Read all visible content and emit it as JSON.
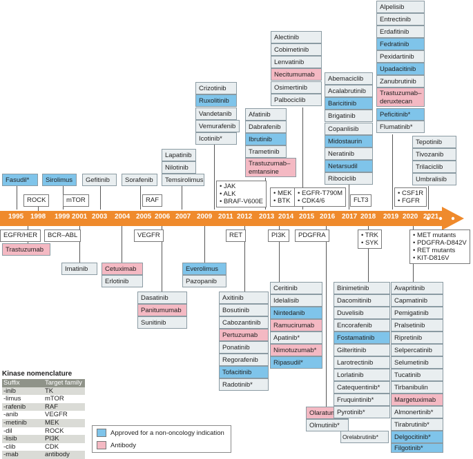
{
  "colors": {
    "arrow": "#ef8a2c",
    "approved_non_oncology": "#7fc4ea",
    "antibody": "#f4b9c3",
    "default_drug": "#e9eef0"
  },
  "years": [
    "1995",
    "1998",
    "1999",
    "2001",
    "2003",
    "2004",
    "2005",
    "2006",
    "2007",
    "2009",
    "2011",
    "2012",
    "2013",
    "2014",
    "2015",
    "2016",
    "2017",
    "2018",
    "2019",
    "2020",
    "2021"
  ],
  "targets": {
    "rock": "ROCK",
    "egfr_her": "EGFR/HER",
    "mtor": "mTOR",
    "bcr_abl": "BCR–ABL",
    "raf": "RAF",
    "vegfr": "VEGFR",
    "jak_alk": [
      "JAK",
      "ALK",
      "BRAF-V600E"
    ],
    "ret": "RET",
    "mek_btk": [
      "MEK",
      "BTK"
    ],
    "pi3k": "PI3K",
    "egfr_cdk": [
      "EGFR-T790M",
      "CDK4/6"
    ],
    "pdgfra": "PDGFRA",
    "flt3": "FLT3",
    "trk_syk": [
      "TRK",
      "SYK"
    ],
    "csf1r_fgfr": [
      "CSF1R",
      "FGFR"
    ],
    "met": [
      "MET mutants",
      "PDGFRA-D842V",
      "RET mutants",
      "KIT-D816V"
    ]
  },
  "drugs": {
    "fasudil": "Fasudil*",
    "sirolimus": "Sirolimus",
    "gefitinib": "Gefitinib",
    "sorafenib": "Sorafenib",
    "lapatinib": "Lapatinib",
    "nilotinib": "Nilotinib",
    "temsirolimus": "Temsirolimus",
    "crizotinib": "Crizotinib",
    "ruxolitinib": "Ruxolitinib",
    "vandetanib": "Vandetanib",
    "vemurafenib": "Vemurafenib",
    "icotinib": "Icotinib*",
    "afatinib": "Afatinib",
    "dabrafenib": "Dabrafenib",
    "ibrutinib": "Ibrutinib",
    "trametinib": "Trametinib",
    "trastuzumab_emtansine": "Trastuzumab–emtansine",
    "alectinib": "Alectinib",
    "cobimetinib": "Cobimetinib",
    "lenvatinib": "Lenvatinib",
    "necitumumab": "Necitumumab",
    "osimertinib": "Osimertinib",
    "palbociclib": "Palbociclib",
    "abemaciclib": "Abemaciclib",
    "acalabrutinib": "Acalabrutinib",
    "baricitinib": "Baricitinib",
    "brigatinib": "Brigatinib",
    "copanlisib": "Copanlisib",
    "midostaurin": "Midostaurin",
    "neratinib": "Neratinib",
    "netarsudil": "Netarsudil",
    "ribociclib": "Ribociclib",
    "alpelisib": "Alpelisib",
    "entrectinib": "Entrectinib",
    "erdafitinib": "Erdafitinib",
    "fedratinib": "Fedratinib",
    "pexidartinib": "Pexidartinib",
    "upadacitinib": "Upadacitinib",
    "zanubrutinib": "Zanubrutinib",
    "trastuzumab_deruxtecan": [
      "Trastuzumab–",
      "deruxtecan"
    ],
    "peficitinib": "Peficitinib*",
    "flumatinib": "Flumatinib*",
    "tepotinib": "Tepotinib",
    "tivozanib": "Tivozanib",
    "trilaciclib": "Trilaciclib",
    "umbralisib": "Umbralisib",
    "trastuzumab": "Trastuzumab",
    "imatinib": "Imatinib",
    "cetuximab": "Cetuximab",
    "erlotinib": "Erlotinib",
    "dasatinib": "Dasatinib",
    "panitumumab": "Panitumumab",
    "sunitinib": "Sunitinib",
    "everolimus": "Everolimus",
    "pazopanib": "Pazopanib",
    "axitinib": "Axitinib",
    "bosutinib": "Bosutinib",
    "cabozantinib": "Cabozantinib",
    "pertuzumab": "Pertuzumab",
    "ponatinib": "Ponatinib",
    "regorafenib": "Regorafenib",
    "tofacitinib": "Tofacitinib",
    "radotinib": "Radotinib*",
    "ceritinib": "Ceritinib",
    "idelalisib": "Idelalisib",
    "nintedanib": "Nintedanib",
    "ramucirumab": "Ramucirumab",
    "apatinib": "Apatinib*",
    "nimotuzumab": "Nimotuzumab*",
    "ripasudil": "Ripasudil*",
    "olaratumab": "Olaratumab",
    "olmutinib": "Olmutinib*",
    "binimetinib": "Binimetinib",
    "dacomitinib": "Dacomitinib",
    "duvelisib": "Duvelisib",
    "encorafenib": "Encorafenib",
    "fostamatinib": "Fostamatinib",
    "gilteritinib": "Gilteritinib",
    "larotrectinib": "Larotrectinib",
    "lorlatinib": "Lorlatinib",
    "catequentinib": "Catequentinib*",
    "fruquintinib": "Fruquintinib*",
    "pyrotinib": "Pyrotinib*",
    "avapritinib": "Avapritinib",
    "capmatinib": "Capmatinib",
    "pemigatinib": "Pemigatinib",
    "pralsetinib": "Pralsetinib",
    "ripretinib": "Ripretinib",
    "selpercatinib": "Selpercatinib",
    "selumetinib": "Selumetinib",
    "tucatinib": "Tucatinib",
    "tirbanibulin": "Tirbanibulin",
    "margetuximab": "Margetuximab",
    "almonertinib": "Almonertinib*",
    "tirabrutinib": "Tirabrutinib*",
    "delgocitinib": "Delgocitinib*",
    "filgotinib": "Filgotinib*",
    "orelabrutinib": "Orelabrutinib*"
  },
  "nomenclature": {
    "title": "Kinase nomenclature",
    "headers": [
      "Suffix",
      "Target family"
    ],
    "rows": [
      [
        "-inib",
        "TK"
      ],
      [
        "-limus",
        "mTOR"
      ],
      [
        "-rafenib",
        "RAF"
      ],
      [
        "-anib",
        "VEGFR"
      ],
      [
        "-metinib",
        "MEK"
      ],
      [
        "-dil",
        "ROCK"
      ],
      [
        "-lisib",
        "PI3K"
      ],
      [
        "-clib",
        "CDK"
      ],
      [
        "-mab",
        "antibody"
      ]
    ]
  },
  "legend": {
    "blue": "Approved for a non-oncology indication",
    "pink": "Antibody"
  }
}
